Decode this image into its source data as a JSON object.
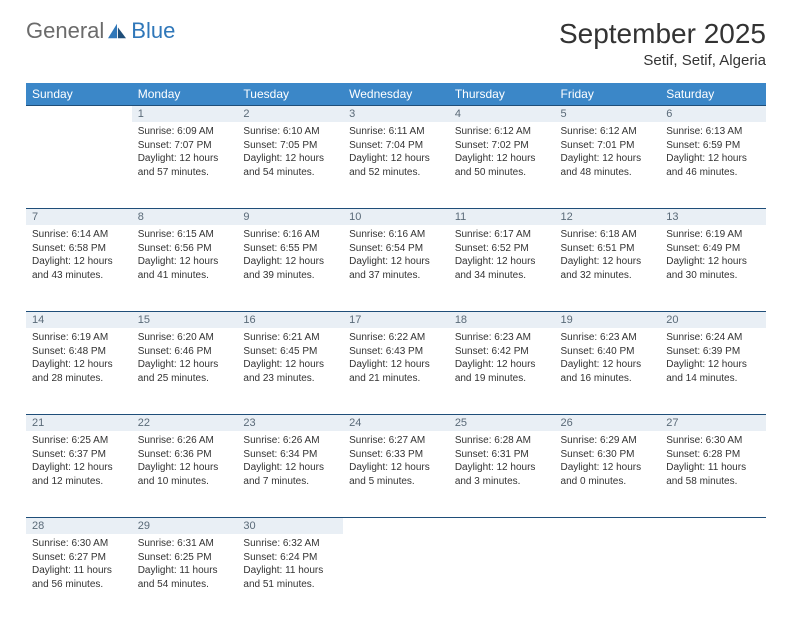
{
  "logo": {
    "general": "General",
    "blue": "Blue"
  },
  "header": {
    "month_title": "September 2025",
    "location": "Setif, Setif, Algeria"
  },
  "colors": {
    "header_bg": "#3b87c8",
    "daynum_bg": "#e9eff5",
    "border": "#1f4e79",
    "text": "#333333",
    "logo_gray": "#6b6b6b",
    "logo_blue": "#2f77b9"
  },
  "weekdays": [
    "Sunday",
    "Monday",
    "Tuesday",
    "Wednesday",
    "Thursday",
    "Friday",
    "Saturday"
  ],
  "weeks": [
    {
      "nums": [
        "",
        "1",
        "2",
        "3",
        "4",
        "5",
        "6"
      ],
      "cells": [
        null,
        {
          "sunrise": "Sunrise: 6:09 AM",
          "sunset": "Sunset: 7:07 PM",
          "day": "Daylight: 12 hours and 57 minutes."
        },
        {
          "sunrise": "Sunrise: 6:10 AM",
          "sunset": "Sunset: 7:05 PM",
          "day": "Daylight: 12 hours and 54 minutes."
        },
        {
          "sunrise": "Sunrise: 6:11 AM",
          "sunset": "Sunset: 7:04 PM",
          "day": "Daylight: 12 hours and 52 minutes."
        },
        {
          "sunrise": "Sunrise: 6:12 AM",
          "sunset": "Sunset: 7:02 PM",
          "day": "Daylight: 12 hours and 50 minutes."
        },
        {
          "sunrise": "Sunrise: 6:12 AM",
          "sunset": "Sunset: 7:01 PM",
          "day": "Daylight: 12 hours and 48 minutes."
        },
        {
          "sunrise": "Sunrise: 6:13 AM",
          "sunset": "Sunset: 6:59 PM",
          "day": "Daylight: 12 hours and 46 minutes."
        }
      ]
    },
    {
      "nums": [
        "7",
        "8",
        "9",
        "10",
        "11",
        "12",
        "13"
      ],
      "cells": [
        {
          "sunrise": "Sunrise: 6:14 AM",
          "sunset": "Sunset: 6:58 PM",
          "day": "Daylight: 12 hours and 43 minutes."
        },
        {
          "sunrise": "Sunrise: 6:15 AM",
          "sunset": "Sunset: 6:56 PM",
          "day": "Daylight: 12 hours and 41 minutes."
        },
        {
          "sunrise": "Sunrise: 6:16 AM",
          "sunset": "Sunset: 6:55 PM",
          "day": "Daylight: 12 hours and 39 minutes."
        },
        {
          "sunrise": "Sunrise: 6:16 AM",
          "sunset": "Sunset: 6:54 PM",
          "day": "Daylight: 12 hours and 37 minutes."
        },
        {
          "sunrise": "Sunrise: 6:17 AM",
          "sunset": "Sunset: 6:52 PM",
          "day": "Daylight: 12 hours and 34 minutes."
        },
        {
          "sunrise": "Sunrise: 6:18 AM",
          "sunset": "Sunset: 6:51 PM",
          "day": "Daylight: 12 hours and 32 minutes."
        },
        {
          "sunrise": "Sunrise: 6:19 AM",
          "sunset": "Sunset: 6:49 PM",
          "day": "Daylight: 12 hours and 30 minutes."
        }
      ]
    },
    {
      "nums": [
        "14",
        "15",
        "16",
        "17",
        "18",
        "19",
        "20"
      ],
      "cells": [
        {
          "sunrise": "Sunrise: 6:19 AM",
          "sunset": "Sunset: 6:48 PM",
          "day": "Daylight: 12 hours and 28 minutes."
        },
        {
          "sunrise": "Sunrise: 6:20 AM",
          "sunset": "Sunset: 6:46 PM",
          "day": "Daylight: 12 hours and 25 minutes."
        },
        {
          "sunrise": "Sunrise: 6:21 AM",
          "sunset": "Sunset: 6:45 PM",
          "day": "Daylight: 12 hours and 23 minutes."
        },
        {
          "sunrise": "Sunrise: 6:22 AM",
          "sunset": "Sunset: 6:43 PM",
          "day": "Daylight: 12 hours and 21 minutes."
        },
        {
          "sunrise": "Sunrise: 6:23 AM",
          "sunset": "Sunset: 6:42 PM",
          "day": "Daylight: 12 hours and 19 minutes."
        },
        {
          "sunrise": "Sunrise: 6:23 AM",
          "sunset": "Sunset: 6:40 PM",
          "day": "Daylight: 12 hours and 16 minutes."
        },
        {
          "sunrise": "Sunrise: 6:24 AM",
          "sunset": "Sunset: 6:39 PM",
          "day": "Daylight: 12 hours and 14 minutes."
        }
      ]
    },
    {
      "nums": [
        "21",
        "22",
        "23",
        "24",
        "25",
        "26",
        "27"
      ],
      "cells": [
        {
          "sunrise": "Sunrise: 6:25 AM",
          "sunset": "Sunset: 6:37 PM",
          "day": "Daylight: 12 hours and 12 minutes."
        },
        {
          "sunrise": "Sunrise: 6:26 AM",
          "sunset": "Sunset: 6:36 PM",
          "day": "Daylight: 12 hours and 10 minutes."
        },
        {
          "sunrise": "Sunrise: 6:26 AM",
          "sunset": "Sunset: 6:34 PM",
          "day": "Daylight: 12 hours and 7 minutes."
        },
        {
          "sunrise": "Sunrise: 6:27 AM",
          "sunset": "Sunset: 6:33 PM",
          "day": "Daylight: 12 hours and 5 minutes."
        },
        {
          "sunrise": "Sunrise: 6:28 AM",
          "sunset": "Sunset: 6:31 PM",
          "day": "Daylight: 12 hours and 3 minutes."
        },
        {
          "sunrise": "Sunrise: 6:29 AM",
          "sunset": "Sunset: 6:30 PM",
          "day": "Daylight: 12 hours and 0 minutes."
        },
        {
          "sunrise": "Sunrise: 6:30 AM",
          "sunset": "Sunset: 6:28 PM",
          "day": "Daylight: 11 hours and 58 minutes."
        }
      ]
    },
    {
      "nums": [
        "28",
        "29",
        "30",
        "",
        "",
        "",
        ""
      ],
      "cells": [
        {
          "sunrise": "Sunrise: 6:30 AM",
          "sunset": "Sunset: 6:27 PM",
          "day": "Daylight: 11 hours and 56 minutes."
        },
        {
          "sunrise": "Sunrise: 6:31 AM",
          "sunset": "Sunset: 6:25 PM",
          "day": "Daylight: 11 hours and 54 minutes."
        },
        {
          "sunrise": "Sunrise: 6:32 AM",
          "sunset": "Sunset: 6:24 PM",
          "day": "Daylight: 11 hours and 51 minutes."
        },
        null,
        null,
        null,
        null
      ]
    }
  ]
}
